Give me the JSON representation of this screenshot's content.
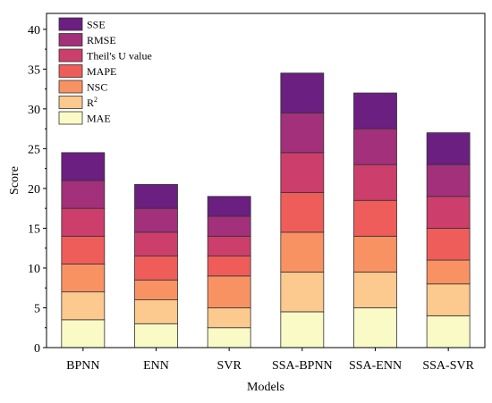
{
  "chart_data": {
    "type": "bar",
    "stacked": true,
    "xlabel": "Models",
    "ylabel": "Score",
    "ylim": [
      0,
      42
    ],
    "yticks": [
      0,
      5,
      10,
      15,
      20,
      25,
      30,
      35,
      40
    ],
    "grid": false,
    "legend_position": "top-left",
    "categories": [
      "BPNN",
      "ENN",
      "SVR",
      "SSA-BPNN",
      "SSA-ENN",
      "SSA-SVR"
    ],
    "series": [
      {
        "name": "MAE",
        "color": "#fafac6",
        "values": [
          3.5,
          3.0,
          2.5,
          4.5,
          5.0,
          4.0
        ]
      },
      {
        "name": "R",
        "name_sup": "2",
        "color": "#fcc98e",
        "values": [
          3.5,
          3.0,
          2.5,
          5.0,
          4.5,
          4.0
        ]
      },
      {
        "name": "NSC",
        "color": "#f99263",
        "values": [
          3.5,
          2.5,
          4.0,
          5.0,
          4.5,
          3.0
        ]
      },
      {
        "name": "MAPE",
        "color": "#ee5d5a",
        "values": [
          3.5,
          3.0,
          2.5,
          5.0,
          4.5,
          4.0
        ]
      },
      {
        "name": "Theil's U value",
        "color": "#cc3e6c",
        "values": [
          3.5,
          3.0,
          2.5,
          5.0,
          4.5,
          4.0
        ]
      },
      {
        "name": "RMSE",
        "color": "#a2307a",
        "values": [
          3.5,
          3.0,
          2.5,
          5.0,
          4.5,
          4.0
        ]
      },
      {
        "name": "SSE",
        "color": "#6b1f80",
        "values": [
          3.5,
          3.0,
          2.5,
          5.0,
          4.5,
          4.0
        ]
      }
    ]
  }
}
